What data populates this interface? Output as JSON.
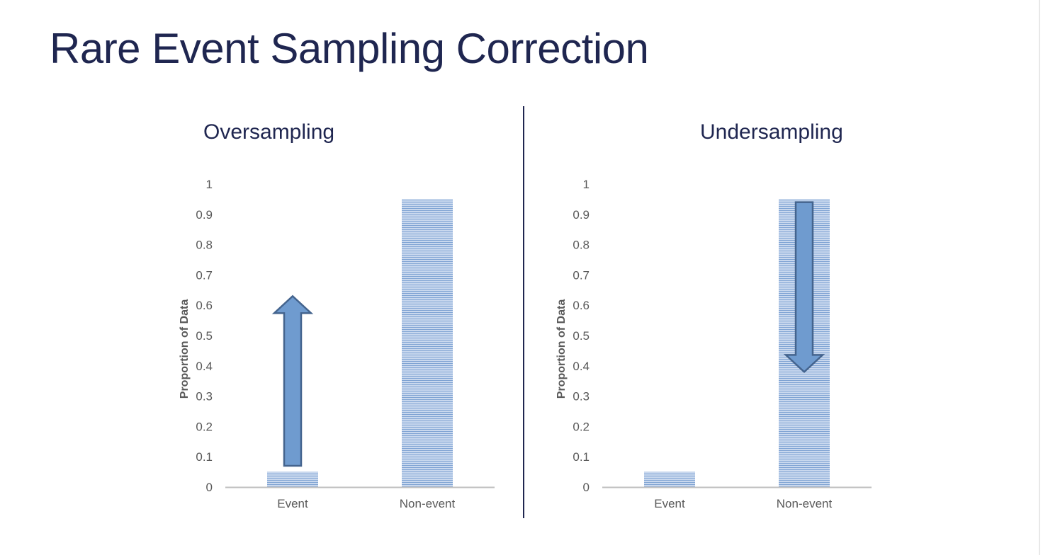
{
  "slide": {
    "title": "Rare Event Sampling Correction"
  },
  "colors": {
    "title": "#1f2650",
    "bar_fill": "#c9d8ee",
    "bar_stripe": "#7fa3d3",
    "arrow_fill": "#6f9bcf",
    "arrow_stroke": "#44648e",
    "axis": "#bfbfbf",
    "tick_text": "#595959"
  },
  "chart_data": [
    {
      "type": "bar",
      "title": "Oversampling",
      "ylabel": "Proportion of Data",
      "xlabel": "",
      "categories": [
        "Event",
        "Non-event"
      ],
      "values": [
        0.05,
        0.95
      ],
      "ylim": [
        0,
        1
      ],
      "yticks": [
        "0",
        "0.1",
        "0.2",
        "0.3",
        "0.4",
        "0.5",
        "0.6",
        "0.7",
        "0.8",
        "0.9",
        "1"
      ],
      "grid": false,
      "legend": "none",
      "annotation": {
        "type": "arrow",
        "direction": "up",
        "category": "Event",
        "from": 0.07,
        "to": 0.63
      }
    },
    {
      "type": "bar",
      "title": "Undersampling",
      "ylabel": "Proportion of Data",
      "xlabel": "",
      "categories": [
        "Event",
        "Non-event"
      ],
      "values": [
        0.05,
        0.95
      ],
      "ylim": [
        0,
        1
      ],
      "yticks": [
        "0",
        "0.1",
        "0.2",
        "0.3",
        "0.4",
        "0.5",
        "0.6",
        "0.7",
        "0.8",
        "0.9",
        "1"
      ],
      "grid": false,
      "legend": "none",
      "annotation": {
        "type": "arrow",
        "direction": "down",
        "category": "Non-event",
        "from": 0.94,
        "to": 0.38
      }
    }
  ]
}
